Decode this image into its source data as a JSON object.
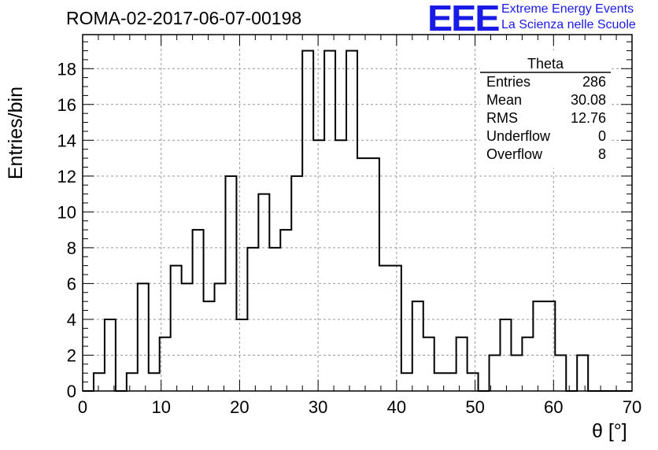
{
  "title": "ROMA-02-2017-06-07-00198",
  "logo": {
    "mark": "EEE",
    "line1": "Extreme Energy Events",
    "line2": "La Scienza nelle Scuole"
  },
  "chart_data": {
    "type": "bar",
    "histogram": true,
    "bin_width": 1.4,
    "x_range": [
      0,
      70
    ],
    "ylim": [
      0,
      19.9
    ],
    "xlabel": "θ [°]",
    "ylabel": "Entries/bin",
    "x_ticks": [
      0,
      10,
      20,
      30,
      40,
      50,
      60,
      70
    ],
    "y_ticks": [
      0,
      2,
      4,
      6,
      8,
      10,
      12,
      14,
      16,
      18
    ],
    "grid": true,
    "bin_edges_start": 0,
    "values": [
      0,
      1,
      4,
      0,
      1,
      6,
      1,
      3,
      7,
      6,
      9,
      5,
      6,
      12,
      4,
      8,
      11,
      8,
      9,
      12,
      19,
      14,
      19,
      14,
      19,
      13,
      13,
      7,
      7,
      1,
      5,
      3,
      1,
      1,
      3,
      1,
      0,
      2,
      4,
      2,
      3,
      5,
      5,
      2,
      0,
      2,
      0,
      0,
      0,
      0
    ],
    "stats": {
      "title": "Theta",
      "rows": [
        {
          "label": "Entries",
          "value": "286"
        },
        {
          "label": "Mean",
          "value": "30.08"
        },
        {
          "label": "RMS",
          "value": "12.76"
        },
        {
          "label": "Underflow",
          "value": "0"
        },
        {
          "label": "Overflow",
          "value": "8"
        }
      ]
    }
  }
}
